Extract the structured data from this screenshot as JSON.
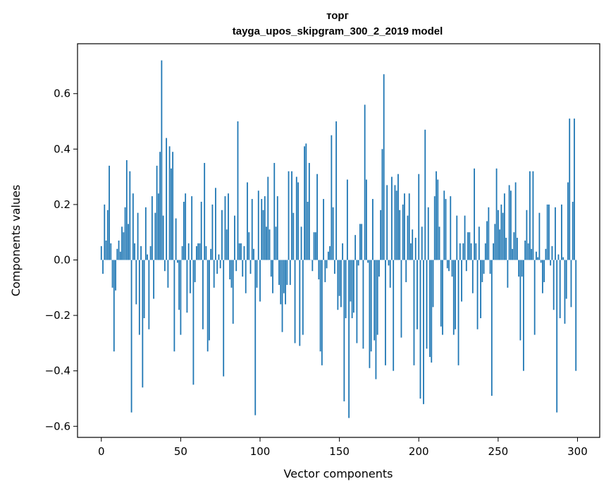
{
  "chart_data": {
    "type": "bar",
    "title": "торг",
    "subtitle": "tayga_upos_skipgram_300_2_2019 model",
    "xlabel": "Vector components",
    "ylabel": "Components values",
    "xlim": [
      -15,
      314
    ],
    "ylim": [
      -0.64,
      0.78
    ],
    "xticks": [
      0,
      50,
      100,
      150,
      200,
      250,
      300
    ],
    "xtick_labels": [
      "0",
      "50",
      "100",
      "150",
      "200",
      "250",
      "300"
    ],
    "yticks": [
      -0.6,
      -0.4,
      -0.2,
      0.0,
      0.2,
      0.4,
      0.6
    ],
    "ytick_labels": [
      "−0.6",
      "−0.4",
      "−0.2",
      "0.0",
      "0.2",
      "0.4",
      "0.6"
    ],
    "grid": false,
    "bar_color": "#1f77b4",
    "x": [
      0,
      1,
      2,
      3,
      4,
      5,
      6,
      7,
      8,
      9,
      10,
      11,
      12,
      13,
      14,
      15,
      16,
      17,
      18,
      19,
      20,
      21,
      22,
      23,
      24,
      25,
      26,
      27,
      28,
      29,
      30,
      31,
      32,
      33,
      34,
      35,
      36,
      37,
      38,
      39,
      40,
      41,
      42,
      43,
      44,
      45,
      46,
      47,
      48,
      49,
      50,
      51,
      52,
      53,
      54,
      55,
      56,
      57,
      58,
      59,
      60,
      61,
      62,
      63,
      64,
      65,
      66,
      67,
      68,
      69,
      70,
      71,
      72,
      73,
      74,
      75,
      76,
      77,
      78,
      79,
      80,
      81,
      82,
      83,
      84,
      85,
      86,
      87,
      88,
      89,
      90,
      91,
      92,
      93,
      94,
      95,
      96,
      97,
      98,
      99,
      100,
      101,
      102,
      103,
      104,
      105,
      106,
      107,
      108,
      109,
      110,
      111,
      112,
      113,
      114,
      115,
      116,
      117,
      118,
      119,
      120,
      121,
      122,
      123,
      124,
      125,
      126,
      127,
      128,
      129,
      130,
      131,
      132,
      133,
      134,
      135,
      136,
      137,
      138,
      139,
      140,
      141,
      142,
      143,
      144,
      145,
      146,
      147,
      148,
      149,
      150,
      151,
      152,
      153,
      154,
      155,
      156,
      157,
      158,
      159,
      160,
      161,
      162,
      163,
      164,
      165,
      166,
      167,
      168,
      169,
      170,
      171,
      172,
      173,
      174,
      175,
      176,
      177,
      178,
      179,
      180,
      181,
      182,
      183,
      184,
      185,
      186,
      187,
      188,
      189,
      190,
      191,
      192,
      193,
      194,
      195,
      196,
      197,
      198,
      199,
      200,
      201,
      202,
      203,
      204,
      205,
      206,
      207,
      208,
      209,
      210,
      211,
      212,
      213,
      214,
      215,
      216,
      217,
      218,
      219,
      220,
      221,
      222,
      223,
      224,
      225,
      226,
      227,
      228,
      229,
      230,
      231,
      232,
      233,
      234,
      235,
      236,
      237,
      238,
      239,
      240,
      241,
      242,
      243,
      244,
      245,
      246,
      247,
      248,
      249,
      250,
      251,
      252,
      253,
      254,
      255,
      256,
      257,
      258,
      259,
      260,
      261,
      262,
      263,
      264,
      265,
      266,
      267,
      268,
      269,
      270,
      271,
      272,
      273,
      274,
      275,
      276,
      277,
      278,
      279,
      280,
      281,
      282,
      283,
      284,
      285,
      286,
      287,
      288,
      289,
      290,
      291,
      292,
      293,
      294,
      295,
      296,
      297,
      298,
      299
    ],
    "values": [
      0.05,
      -0.05,
      0.2,
      0.07,
      0.18,
      0.34,
      0.06,
      -0.1,
      -0.33,
      -0.11,
      0.04,
      0.07,
      0.03,
      0.12,
      0.1,
      0.19,
      0.36,
      0.13,
      0.32,
      -0.55,
      0.24,
      0.06,
      -0.16,
      0.17,
      -0.27,
      0.05,
      -0.46,
      -0.21,
      0.19,
      0.02,
      -0.25,
      0.05,
      0.23,
      -0.14,
      0.17,
      0.34,
      0.24,
      0.39,
      0.72,
      0.16,
      -0.04,
      0.44,
      -0.1,
      0.41,
      0.33,
      0.39,
      -0.33,
      0.15,
      -0.01,
      -0.18,
      -0.27,
      0.05,
      0.21,
      0.24,
      -0.19,
      0.06,
      -0.12,
      0.23,
      -0.45,
      -0.08,
      0.05,
      0.06,
      0.06,
      0.21,
      -0.25,
      0.35,
      0.05,
      -0.33,
      -0.29,
      0.04,
      0.2,
      -0.1,
      0.26,
      -0.05,
      0.02,
      -0.03,
      0.18,
      -0.42,
      0.23,
      0.11,
      0.24,
      -0.07,
      -0.1,
      -0.23,
      0.16,
      -0.04,
      0.5,
      0.06,
      0.06,
      -0.06,
      0.05,
      -0.12,
      0.28,
      0.1,
      -0.05,
      0.22,
      0.04,
      -0.56,
      -0.1,
      0.25,
      -0.15,
      0.22,
      0.18,
      0.23,
      0.12,
      0.3,
      0.11,
      -0.06,
      -0.12,
      0.35,
      0.12,
      0.23,
      -0.09,
      -0.16,
      -0.26,
      -0.12,
      -0.16,
      -0.09,
      0.32,
      -0.09,
      0.32,
      0.17,
      -0.3,
      0.3,
      0.28,
      -0.31,
      0.12,
      -0.27,
      0.41,
      0.42,
      0.21,
      0.35,
      0.0,
      -0.04,
      0.1,
      0.1,
      0.31,
      -0.07,
      -0.33,
      -0.38,
      0.22,
      -0.08,
      -0.03,
      0.03,
      0.05,
      0.45,
      0.19,
      -0.05,
      0.5,
      -0.18,
      -0.13,
      -0.17,
      0.06,
      -0.51,
      -0.21,
      0.29,
      -0.57,
      -0.15,
      -0.21,
      -0.19,
      0.09,
      -0.3,
      -0.02,
      0.13,
      0.13,
      -0.32,
      0.56,
      0.29,
      -0.01,
      -0.39,
      -0.33,
      0.22,
      -0.29,
      -0.43,
      -0.27,
      -0.06,
      0.18,
      0.4,
      0.67,
      -0.38,
      0.27,
      -0.02,
      -0.1,
      0.3,
      -0.4,
      0.27,
      0.25,
      0.31,
      0.18,
      -0.28,
      0.2,
      0.24,
      -0.08,
      0.16,
      0.24,
      0.06,
      0.11,
      -0.38,
      0.08,
      -0.25,
      0.31,
      -0.5,
      0.12,
      -0.52,
      0.47,
      -0.32,
      0.19,
      -0.35,
      -0.37,
      -0.17,
      0.23,
      0.32,
      0.29,
      0.12,
      -0.24,
      -0.27,
      0.25,
      0.22,
      -0.03,
      -0.04,
      0.23,
      -0.06,
      -0.27,
      -0.25,
      0.16,
      -0.38,
      0.06,
      -0.15,
      0.06,
      0.16,
      -0.04,
      0.1,
      0.1,
      0.06,
      -0.12,
      0.33,
      0.06,
      -0.25,
      0.12,
      -0.21,
      -0.08,
      -0.05,
      0.06,
      0.14,
      0.19,
      -0.05,
      -0.49,
      0.06,
      0.13,
      0.33,
      0.18,
      0.11,
      0.2,
      0.17,
      0.24,
      0.08,
      -0.1,
      0.27,
      0.25,
      0.04,
      0.1,
      0.28,
      0.08,
      -0.06,
      -0.29,
      -0.06,
      -0.4,
      0.07,
      0.18,
      0.06,
      0.32,
      0.04,
      0.32,
      -0.27,
      0.03,
      0.01,
      0.17,
      -0.01,
      -0.12,
      -0.08,
      0.04,
      0.2,
      0.2,
      -0.02,
      0.05,
      -0.18,
      0.19,
      -0.55,
      0.02,
      -0.21,
      0.2,
      0.01,
      -0.23,
      -0.14,
      0.28,
      0.51,
      -0.17,
      0.21,
      0.51,
      -0.4
    ]
  }
}
